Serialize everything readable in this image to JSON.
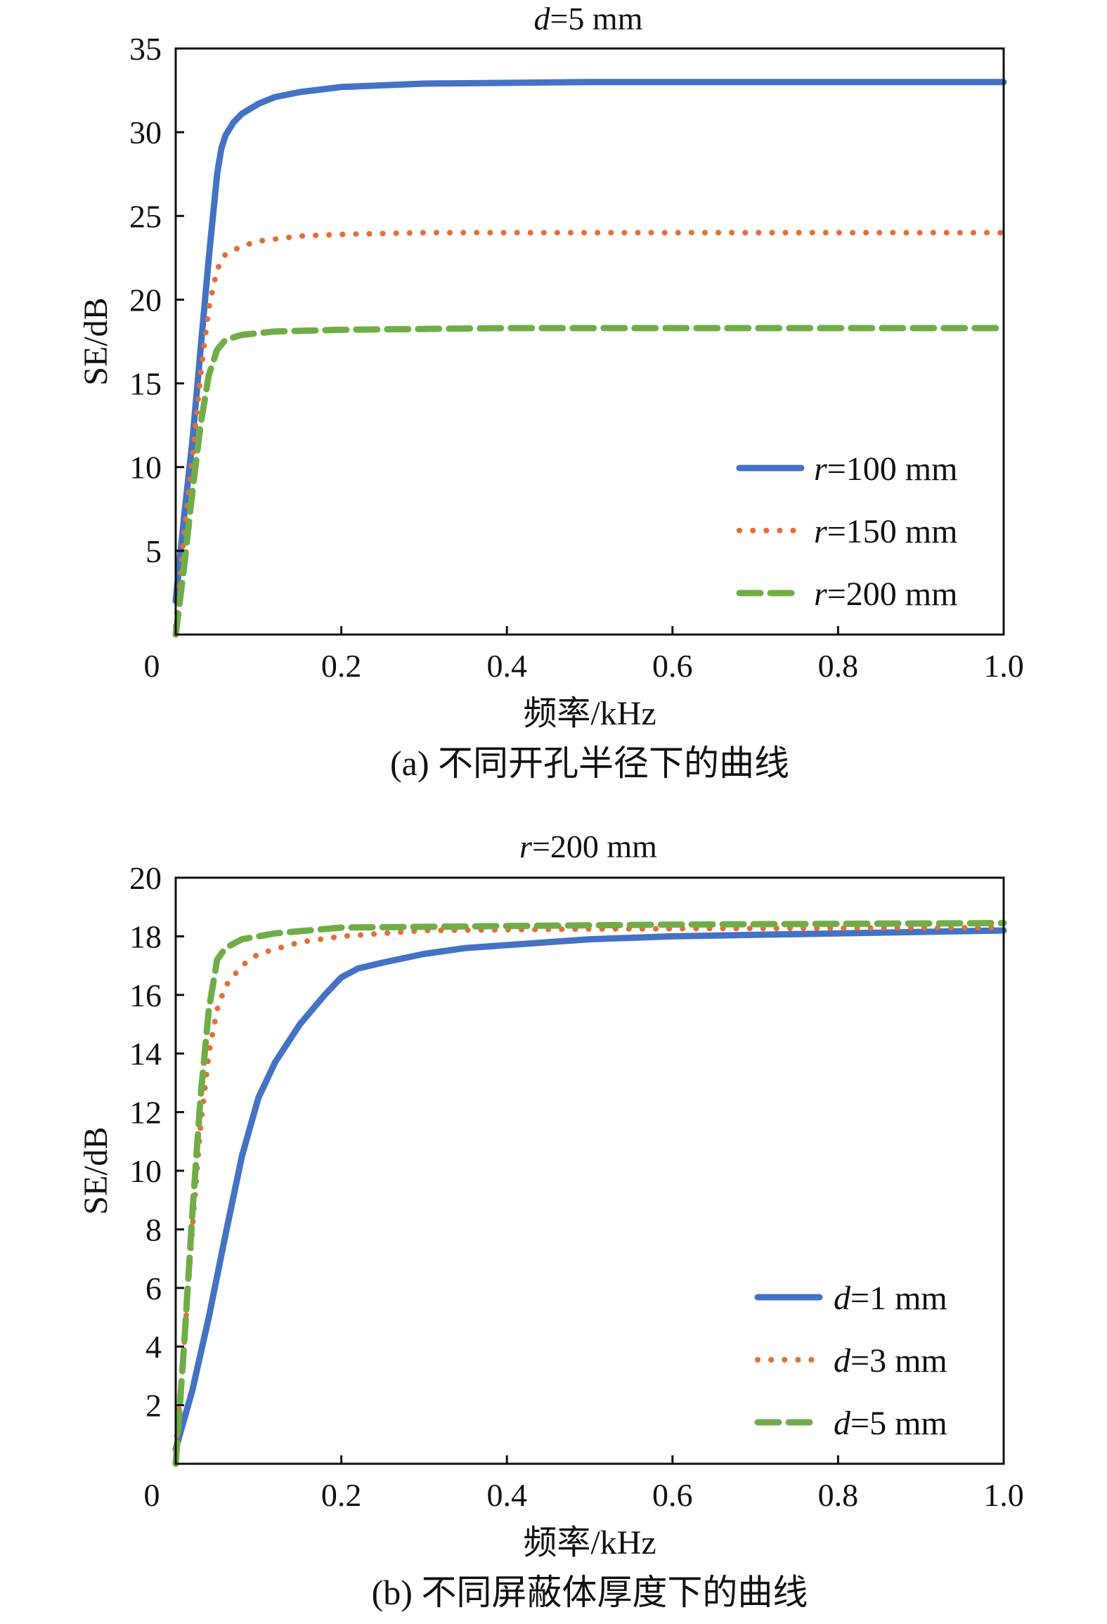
{
  "colors": {
    "blue": "#4472C4",
    "orange": "#E0703A",
    "green": "#70AD47",
    "axis": "#111111",
    "background": "#ffffff"
  },
  "chart_data": [
    {
      "type": "line",
      "title_var": "d",
      "title_rest": "=5 mm",
      "xlabel": "频率/kHz",
      "ylabel": "SE/dB",
      "caption": "(a) 不同开孔半径下的曲线",
      "xlim": [
        0,
        1.0
      ],
      "ylim": [
        0,
        35
      ],
      "x_origin_label": "0",
      "x_ticks": [
        0.2,
        0.4,
        0.6,
        0.8,
        1.0
      ],
      "x_tick_labels": [
        "0.2",
        "0.4",
        "0.6",
        "0.8",
        "1.0"
      ],
      "y_ticks": [
        5,
        10,
        15,
        20,
        25,
        30,
        35
      ],
      "y_tick_labels": [
        "5",
        "10",
        "15",
        "20",
        "25",
        "30",
        "35"
      ],
      "legend_position": "bottom-right",
      "grid": false,
      "series": [
        {
          "var": "r",
          "rest": "=100 mm",
          "style": "solid",
          "color": "#4472C4",
          "points": [
            [
              0,
              2
            ],
            [
              0.01,
              7
            ],
            [
              0.02,
              11.5
            ],
            [
              0.03,
              17
            ],
            [
              0.04,
              22.5
            ],
            [
              0.05,
              27.5
            ],
            [
              0.055,
              29
            ],
            [
              0.06,
              29.8
            ],
            [
              0.07,
              30.6
            ],
            [
              0.08,
              31.1
            ],
            [
              0.1,
              31.7
            ],
            [
              0.12,
              32.1
            ],
            [
              0.15,
              32.4
            ],
            [
              0.2,
              32.7
            ],
            [
              0.3,
              32.9
            ],
            [
              0.5,
              33.0
            ],
            [
              0.7,
              33.0
            ],
            [
              1.0,
              33.0
            ]
          ]
        },
        {
          "var": "r",
          "rest": "=150 mm",
          "style": "dotted",
          "color": "#E0703A",
          "points": [
            [
              0,
              0.5
            ],
            [
              0.01,
              6
            ],
            [
              0.02,
              10.5
            ],
            [
              0.03,
              15.5
            ],
            [
              0.04,
              19.5
            ],
            [
              0.05,
              21.8
            ],
            [
              0.06,
              22.7
            ],
            [
              0.08,
              23.2
            ],
            [
              0.1,
              23.5
            ],
            [
              0.15,
              23.8
            ],
            [
              0.2,
              23.9
            ],
            [
              0.3,
              24.0
            ],
            [
              0.5,
              24.0
            ],
            [
              1.0,
              24.0
            ]
          ]
        },
        {
          "var": "r",
          "rest": "=200 mm",
          "style": "dashed",
          "color": "#70AD47",
          "points": [
            [
              0,
              0
            ],
            [
              0.01,
              4
            ],
            [
              0.02,
              8.5
            ],
            [
              0.03,
              12.5
            ],
            [
              0.04,
              15.5
            ],
            [
              0.05,
              17.0
            ],
            [
              0.06,
              17.6
            ],
            [
              0.08,
              17.9
            ],
            [
              0.12,
              18.1
            ],
            [
              0.2,
              18.2
            ],
            [
              0.4,
              18.3
            ],
            [
              0.6,
              18.3
            ],
            [
              1.0,
              18.3
            ]
          ]
        }
      ]
    },
    {
      "type": "line",
      "title_var": "r",
      "title_rest": "=200 mm",
      "xlabel": "频率/kHz",
      "ylabel": "SE/dB",
      "caption": "(b) 不同屏蔽体厚度下的曲线",
      "xlim": [
        0,
        1.0
      ],
      "ylim": [
        0,
        20
      ],
      "x_origin_label": "0",
      "x_ticks": [
        0.2,
        0.4,
        0.6,
        0.8,
        1.0
      ],
      "x_tick_labels": [
        "0.2",
        "0.4",
        "0.6",
        "0.8",
        "1.0"
      ],
      "y_ticks": [
        2,
        4,
        6,
        8,
        10,
        12,
        14,
        16,
        18,
        20
      ],
      "y_tick_labels": [
        "2",
        "4",
        "6",
        "8",
        "10",
        "12",
        "14",
        "16",
        "18",
        "20"
      ],
      "legend_position": "bottom-right",
      "grid": false,
      "series": [
        {
          "var": "d",
          "rest": "=1 mm",
          "style": "solid",
          "color": "#4472C4",
          "points": [
            [
              0,
              0.5
            ],
            [
              0.02,
              2.5
            ],
            [
              0.04,
              5
            ],
            [
              0.06,
              7.8
            ],
            [
              0.08,
              10.5
            ],
            [
              0.1,
              12.5
            ],
            [
              0.12,
              13.7
            ],
            [
              0.15,
              15
            ],
            [
              0.18,
              16
            ],
            [
              0.2,
              16.6
            ],
            [
              0.22,
              16.9
            ],
            [
              0.25,
              17.1
            ],
            [
              0.3,
              17.4
            ],
            [
              0.35,
              17.6
            ],
            [
              0.4,
              17.7
            ],
            [
              0.5,
              17.9
            ],
            [
              0.6,
              18.0
            ],
            [
              0.7,
              18.05
            ],
            [
              0.8,
              18.1
            ],
            [
              1.0,
              18.2
            ]
          ]
        },
        {
          "var": "d",
          "rest": "=3 mm",
          "style": "dotted",
          "color": "#E0703A",
          "points": [
            [
              0,
              0.5
            ],
            [
              0.01,
              4
            ],
            [
              0.02,
              8
            ],
            [
              0.03,
              11.5
            ],
            [
              0.04,
              14
            ],
            [
              0.05,
              15.5
            ],
            [
              0.06,
              16.3
            ],
            [
              0.08,
              17.0
            ],
            [
              0.1,
              17.4
            ],
            [
              0.15,
              17.8
            ],
            [
              0.2,
              18.0
            ],
            [
              0.3,
              18.2
            ],
            [
              0.5,
              18.25
            ],
            [
              1.0,
              18.3
            ]
          ]
        },
        {
          "var": "d",
          "rest": "=5 mm",
          "style": "dashed",
          "color": "#70AD47",
          "points": [
            [
              0,
              0
            ],
            [
              0.01,
              4
            ],
            [
              0.02,
              8.5
            ],
            [
              0.03,
              12.5
            ],
            [
              0.04,
              15.5
            ],
            [
              0.05,
              17.2
            ],
            [
              0.06,
              17.6
            ],
            [
              0.08,
              17.9
            ],
            [
              0.12,
              18.1
            ],
            [
              0.2,
              18.3
            ],
            [
              0.4,
              18.35
            ],
            [
              0.6,
              18.4
            ],
            [
              1.0,
              18.45
            ]
          ]
        }
      ]
    }
  ]
}
